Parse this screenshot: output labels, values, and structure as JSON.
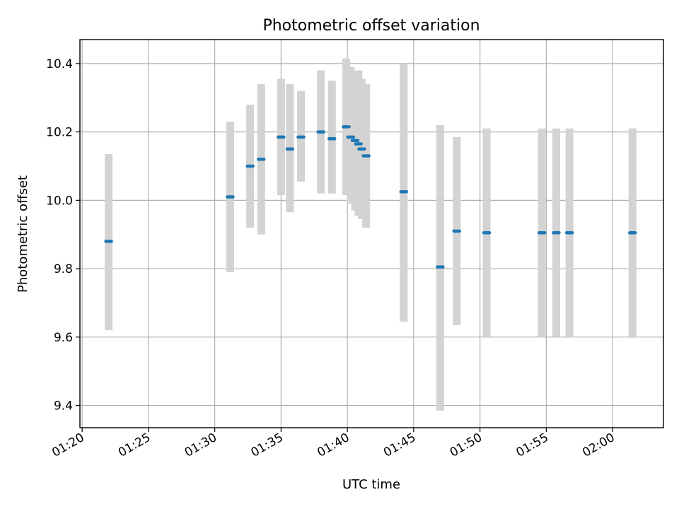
{
  "chart_data": {
    "type": "scatter",
    "title": "Photometric offset variation",
    "xlabel": "UTC time",
    "ylabel": "Photometric offset",
    "x_axis_kind": "time",
    "xlim": [
      "01:19:50",
      "02:03:50"
    ],
    "ylim": [
      9.335,
      10.47
    ],
    "grid": true,
    "x_ticks": [
      "01:20",
      "01:25",
      "01:30",
      "01:35",
      "01:40",
      "01:45",
      "01:50",
      "01:55",
      "02:00"
    ],
    "y_ticks": [
      "9.4",
      "9.6",
      "9.8",
      "10.0",
      "10.2",
      "10.4"
    ],
    "colors": {
      "point": "#1f77b4",
      "errorbar": "#d3d3d3",
      "grid": "#b0b0b0"
    },
    "series": [
      {
        "points": [
          {
            "time": "01:22:00",
            "y": 9.88,
            "ylow": 9.62,
            "yhigh": 10.135
          },
          {
            "time": "01:31:10",
            "y": 10.01,
            "ylow": 9.79,
            "yhigh": 10.23
          },
          {
            "time": "01:32:40",
            "y": 10.1,
            "ylow": 9.92,
            "yhigh": 10.28
          },
          {
            "time": "01:33:30",
            "y": 10.12,
            "ylow": 9.9,
            "yhigh": 10.34
          },
          {
            "time": "01:35:00",
            "y": 10.185,
            "ylow": 10.015,
            "yhigh": 10.355
          },
          {
            "time": "01:35:40",
            "y": 10.15,
            "ylow": 9.965,
            "yhigh": 10.34
          },
          {
            "time": "01:36:30",
            "y": 10.185,
            "ylow": 10.055,
            "yhigh": 10.32
          },
          {
            "time": "01:38:00",
            "y": 10.2,
            "ylow": 10.02,
            "yhigh": 10.38
          },
          {
            "time": "01:38:50",
            "y": 10.18,
            "ylow": 10.02,
            "yhigh": 10.35
          },
          {
            "time": "01:39:55",
            "y": 10.215,
            "ylow": 10.015,
            "yhigh": 10.415
          },
          {
            "time": "01:40:15",
            "y": 10.185,
            "ylow": 9.99,
            "yhigh": 10.39
          },
          {
            "time": "01:40:35",
            "y": 10.175,
            "ylow": 9.97,
            "yhigh": 10.38
          },
          {
            "time": "01:40:50",
            "y": 10.165,
            "ylow": 9.955,
            "yhigh": 10.38
          },
          {
            "time": "01:41:05",
            "y": 10.15,
            "ylow": 9.945,
            "yhigh": 10.355
          },
          {
            "time": "01:41:25",
            "y": 10.13,
            "ylow": 9.92,
            "yhigh": 10.34
          },
          {
            "time": "01:44:15",
            "y": 10.025,
            "ylow": 9.645,
            "yhigh": 10.4
          },
          {
            "time": "01:47:00",
            "y": 9.805,
            "ylow": 9.385,
            "yhigh": 10.22
          },
          {
            "time": "01:48:15",
            "y": 9.91,
            "ylow": 9.635,
            "yhigh": 10.185
          },
          {
            "time": "01:50:30",
            "y": 9.905,
            "ylow": 9.6,
            "yhigh": 10.21
          },
          {
            "time": "01:54:40",
            "y": 9.905,
            "ylow": 9.6,
            "yhigh": 10.21
          },
          {
            "time": "01:55:45",
            "y": 9.905,
            "ylow": 9.6,
            "yhigh": 10.21
          },
          {
            "time": "01:56:45",
            "y": 9.905,
            "ylow": 9.6,
            "yhigh": 10.21
          },
          {
            "time": "02:01:30",
            "y": 9.905,
            "ylow": 9.6,
            "yhigh": 10.21
          }
        ]
      }
    ]
  }
}
